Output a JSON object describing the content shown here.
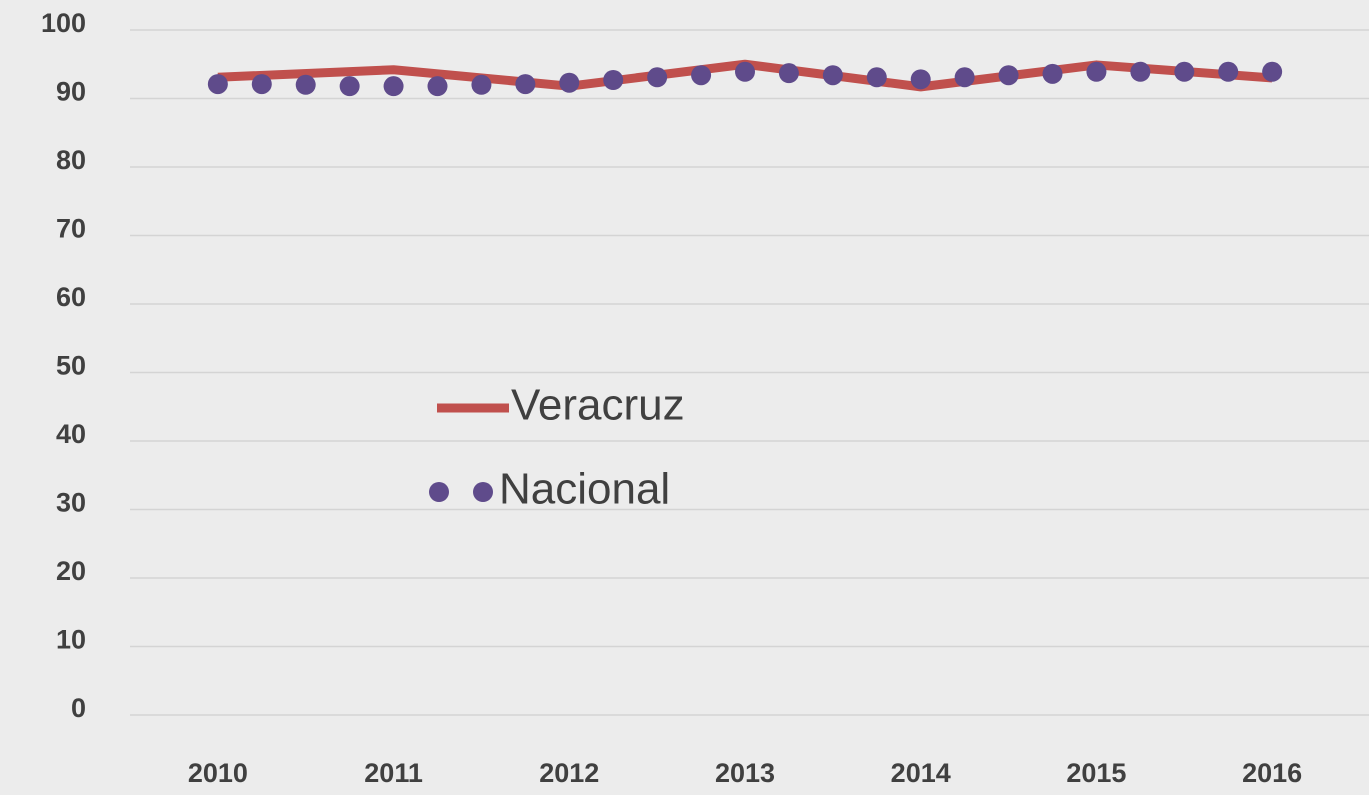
{
  "chart_data": {
    "type": "line",
    "xlim": [
      2009.5,
      2016.5
    ],
    "xticks": [
      2010,
      2011,
      2012,
      2013,
      2014,
      2015,
      2016
    ],
    "ylim": [
      0,
      100
    ],
    "yticks": [
      0,
      10,
      20,
      30,
      40,
      50,
      60,
      70,
      80,
      90,
      100
    ],
    "grid": true,
    "legend": "center-left",
    "series": [
      {
        "name": "Veracruz",
        "color": "#c0504d",
        "style": "line",
        "x": [
          2010,
          2011,
          2012,
          2013,
          2014,
          2015,
          2016
        ],
        "values": [
          93.1,
          94.2,
          91.8,
          95.0,
          91.7,
          94.9,
          93.0
        ]
      },
      {
        "name": "Nacional",
        "color": "#5f4b8b",
        "style": "dots",
        "x": [
          2010,
          2010.25,
          2010.5,
          2010.75,
          2011,
          2011.25,
          2011.5,
          2011.75,
          2012,
          2012.25,
          2012.5,
          2012.75,
          2013,
          2013.25,
          2013.5,
          2013.75,
          2014,
          2014.25,
          2014.5,
          2014.75,
          2015,
          2015.25,
          2015.5,
          2015.75,
          2016
        ],
        "values": [
          92.1,
          92.1,
          92.0,
          91.8,
          91.8,
          91.8,
          92.0,
          92.1,
          92.3,
          92.7,
          93.1,
          93.4,
          93.9,
          93.7,
          93.4,
          93.1,
          92.8,
          93.1,
          93.4,
          93.6,
          93.9,
          93.9,
          93.9,
          93.9,
          93.9
        ]
      }
    ]
  }
}
